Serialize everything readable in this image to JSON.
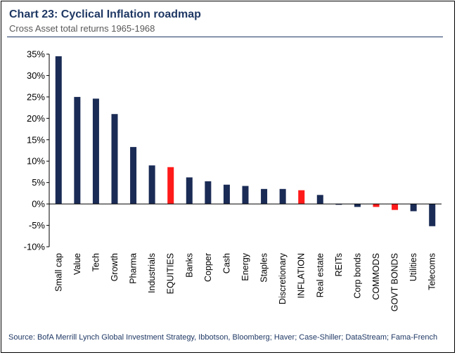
{
  "title": "Chart 23: Cyclical Inflation roadmap",
  "subtitle": "Cross Asset total returns 1965-1968",
  "source": "Source:  BofA Merrill Lynch Global Investment Strategy, Ibbotson,  Bloomberg; Haver; Case-Shiller; DataStream; Fama-French",
  "colors": {
    "bar": "#1a2b55",
    "highlight": "#ff1a1a",
    "text": "#1f3864"
  },
  "chart_data": {
    "type": "bar",
    "title": "Chart 23: Cyclical Inflation roadmap",
    "subtitle": "Cross Asset total returns 1965-1968",
    "xlabel": "",
    "ylabel": "",
    "ylim": [
      -10,
      35
    ],
    "yticks": [
      35,
      30,
      25,
      20,
      15,
      10,
      5,
      0,
      -5,
      -10
    ],
    "ytick_labels": [
      "35%",
      "30%",
      "25%",
      "20%",
      "15%",
      "10%",
      "5%",
      "0%",
      "-5%",
      "-10%"
    ],
    "categories": [
      "Small cap",
      "Value",
      "Tech",
      "Growth",
      "Pharma",
      "Industrials",
      "EQUITIES",
      "Banks",
      "Copper",
      "Cash",
      "Energy",
      "Staples",
      "Discretionary",
      "INFLATION",
      "Real estate",
      "REITs",
      "Corp bonds",
      "COMMODS",
      "GOVT BONDS",
      "Utilities",
      "Telecoms"
    ],
    "values": [
      34.5,
      25.0,
      24.6,
      21.0,
      13.3,
      9.0,
      8.6,
      6.2,
      5.3,
      4.5,
      4.2,
      3.5,
      3.5,
      3.2,
      2.1,
      -0.2,
      -0.7,
      -0.7,
      -1.4,
      -1.7,
      -5.2
    ],
    "highlighted": [
      "EQUITIES",
      "INFLATION",
      "COMMODS",
      "GOVT BONDS"
    ],
    "grid": false,
    "legend": "none"
  }
}
